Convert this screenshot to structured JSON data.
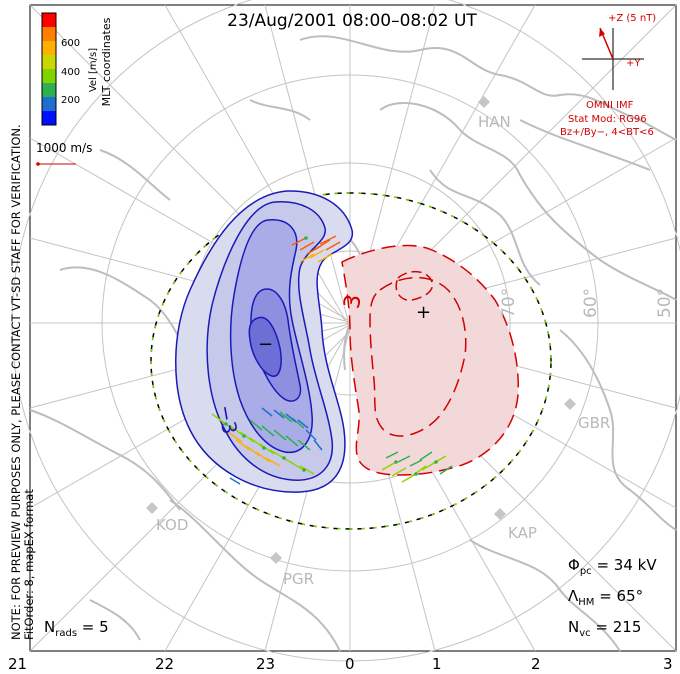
{
  "title": "23/Aug/2001  08:00–08:02  UT",
  "colorbar": {
    "label": "Vel [m/s]",
    "ticks": [
      "600",
      "400",
      "200"
    ],
    "colors": [
      "#ff0000",
      "#ff7f00",
      "#ffb000",
      "#c8d800",
      "#7fd400",
      "#2fb050",
      "#1f6fd0",
      "#0010ff"
    ]
  },
  "coord_label": "MLT coordinates",
  "scale_label": "1000 m/s",
  "side_note": "NOTE: FOR PREVIEW PURPOSES ONLY, PLEASE CONTACT VT-SD STAFF FOR VERIFICATION.",
  "fit_note": "FitOrder: 8,  mapEX format",
  "imf": {
    "z_label": "+Z (5 nT)",
    "y_label": "+Y",
    "source": "OMNI IMF",
    "model": "Stat Mod: RG96",
    "condition": "Bz+/By−,  4<BT<6",
    "color": "#d40000"
  },
  "latitude_labels": [
    "70°",
    "60°",
    "50°"
  ],
  "stations": [
    "HAN",
    "GBR",
    "KAP",
    "KOD",
    "PGR"
  ],
  "contour_labels": {
    "neg": "−3",
    "pos": "3",
    "max": "+",
    "min": "−"
  },
  "stats": {
    "phi_symbol": "Φ",
    "phi_sub": "pc",
    "phi_value": " = 34 kV",
    "lambda_symbol": "Λ",
    "lambda_sub": "HM",
    "lambda_value": " = 65°",
    "nvc_symbol": "N",
    "nvc_sub": "vc",
    "nvc_value": " = 215",
    "nrads_symbol": "N",
    "nrads_sub": "rads",
    "nrads_value": " = 5"
  },
  "mlt_labels": [
    "21",
    "22",
    "23",
    "0",
    "1",
    "2",
    "3"
  ]
}
